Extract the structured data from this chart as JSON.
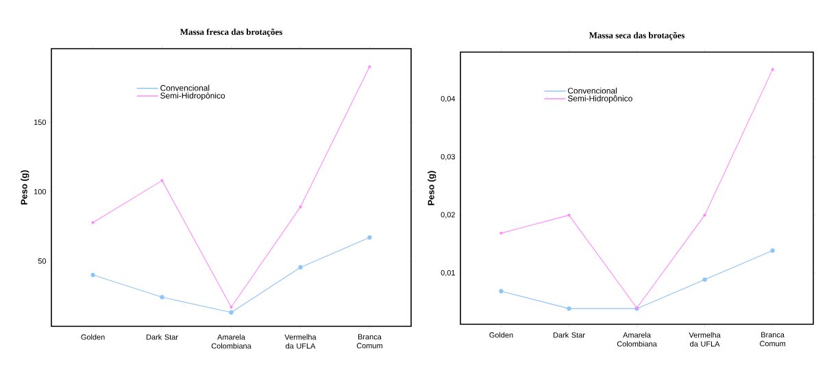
{
  "chart_data": [
    {
      "type": "line",
      "title": "Massa fresca das brotações",
      "ylabel": "Peso (g)",
      "categories": [
        "Golden",
        "Dark Star",
        "Amarela Colombiana",
        "Vermelha da UFLA",
        "Branca Comum"
      ],
      "series": [
        {
          "name": "Convencional",
          "color": "#8ec4f8",
          "values": [
            40,
            24,
            13,
            45.5,
            67
          ]
        },
        {
          "name": "Semi-Hidropônico",
          "color": "#ff88ff",
          "values": [
            77.7,
            108,
            16.8,
            89,
            190
          ]
        }
      ],
      "ylim": [
        3,
        203
      ],
      "yticks": [
        50,
        100,
        150
      ],
      "legend": "top",
      "marker": "circle",
      "line_style": "solid"
    },
    {
      "type": "line",
      "title": "Massa seca das brotações",
      "ylabel": "Peso (g)",
      "categories": [
        "Golden",
        "Dark Star",
        "Amarela Colombiana",
        "Vermelha da UFLA",
        "Branca Comum"
      ],
      "series": [
        {
          "name": "Convencional",
          "color": "#8ec4f8",
          "values": [
            0.0069,
            0.0039,
            0.0039,
            0.0089,
            0.0139
          ]
        },
        {
          "name": "Semi-Hidropônico",
          "color": "#ff88ff",
          "values": [
            0.0169,
            0.02,
            0.004,
            0.02,
            0.0451
          ]
        }
      ],
      "ylim": [
        0.0012,
        0.0481
      ],
      "yticks": [
        {
          "value": 0.01,
          "label": "0,01"
        },
        {
          "value": 0.02,
          "label": "0,02"
        },
        {
          "value": 0.03,
          "label": "0,03"
        },
        {
          "value": 0.04,
          "label": "0,04"
        }
      ],
      "legend": "top",
      "marker": "circle",
      "line_style": "solid"
    }
  ]
}
